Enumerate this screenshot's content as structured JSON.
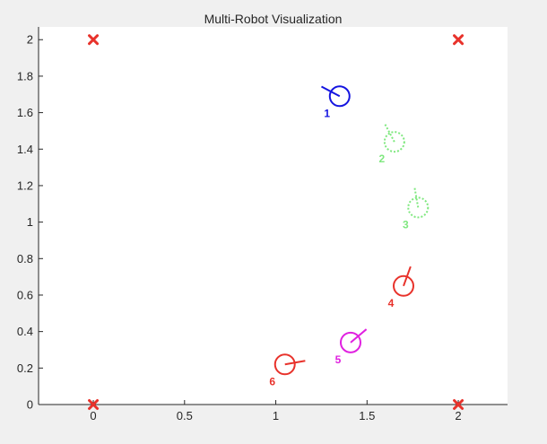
{
  "chart_data": {
    "type": "scatter",
    "title": "Multi-Robot Visualization",
    "xlabel": "",
    "ylabel": "",
    "xlim": [
      -0.3,
      2.27
    ],
    "ylim": [
      0,
      2.07
    ],
    "xticks": [
      0,
      0.5,
      1,
      1.5,
      2
    ],
    "xtick_labels": [
      "0",
      "0.5",
      "1",
      "1.5",
      "2"
    ],
    "yticks": [
      0,
      0.2,
      0.4,
      0.6,
      0.8,
      1,
      1.2,
      1.4,
      1.6,
      1.8,
      2
    ],
    "ytick_labels": [
      "0",
      "0.2",
      "0.4",
      "0.6",
      "0.8",
      "1",
      "1.2",
      "1.4",
      "1.6",
      "1.8",
      "2"
    ],
    "grid": false,
    "corner_markers": {
      "marker": "x",
      "color": "#e8322b",
      "points": [
        {
          "x": 0,
          "y": 2
        },
        {
          "x": 2,
          "y": 2
        },
        {
          "x": 0,
          "y": 0
        },
        {
          "x": 2,
          "y": 0
        }
      ]
    },
    "robots": [
      {
        "id": "1",
        "x": 1.35,
        "y": 1.69,
        "heading_deg": 152,
        "color": "#1515e0",
        "style": "solid"
      },
      {
        "id": "2",
        "x": 1.65,
        "y": 1.44,
        "heading_deg": 118,
        "color": "#7fe87f",
        "style": "dotted"
      },
      {
        "id": "3",
        "x": 1.78,
        "y": 1.08,
        "heading_deg": 100,
        "color": "#7fe87f",
        "style": "dotted"
      },
      {
        "id": "4",
        "x": 1.7,
        "y": 0.65,
        "heading_deg": 70,
        "color": "#e8322b",
        "style": "solid"
      },
      {
        "id": "5",
        "x": 1.41,
        "y": 0.34,
        "heading_deg": 40,
        "color": "#e020e0",
        "style": "solid"
      },
      {
        "id": "6",
        "x": 1.05,
        "y": 0.22,
        "heading_deg": 10,
        "color": "#e8322b",
        "style": "solid"
      }
    ]
  }
}
